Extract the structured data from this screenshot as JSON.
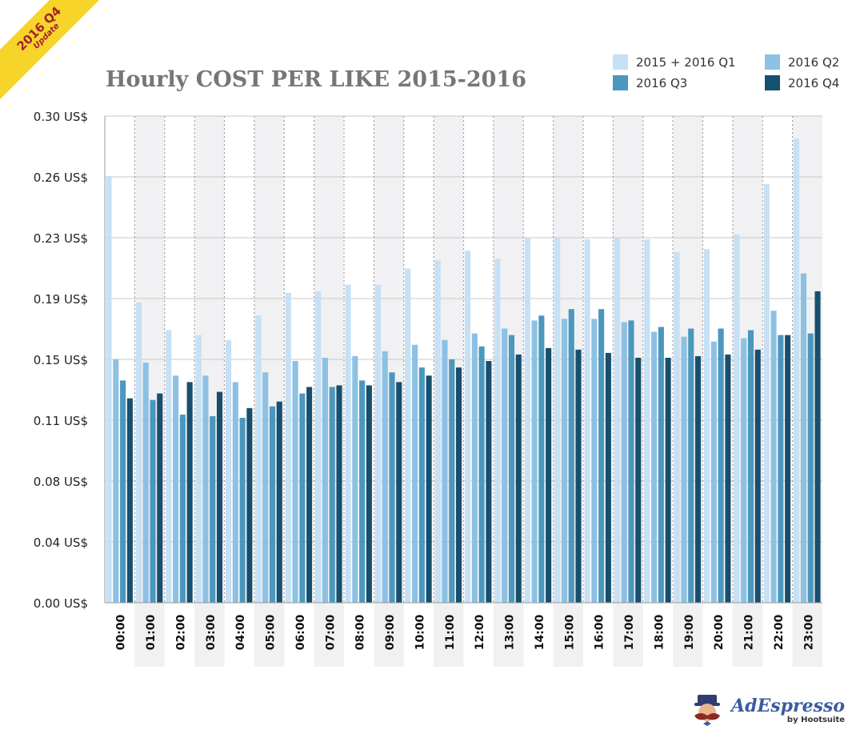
{
  "badge": {
    "line1": "2016 Q4",
    "line2": "Update"
  },
  "logo": {
    "name": "AdEspresso",
    "byline": "by Hootsuite"
  },
  "colors": {
    "series": [
      "#c6e0f5",
      "#8cc1e3",
      "#4b97bd",
      "#174f6e"
    ],
    "band": "#f1f0f2",
    "grid": "#c8c8c8",
    "badge_bg": "#f6d42a",
    "badge_text": "#a3212a",
    "title": "#767676"
  },
  "chart_data": {
    "type": "bar",
    "title": "Hourly COST PER LIKE 2015-2016",
    "xlabel": "",
    "ylabel": "",
    "ylim": [
      0,
      0.3
    ],
    "yticks": [
      0,
      0.0375,
      0.075,
      0.1125,
      0.15,
      0.1875,
      0.225,
      0.2625,
      0.3
    ],
    "ytick_labels": [
      "0.00 US$",
      "0.04 US$",
      "0.08 US$",
      "0.11 US$",
      "0.15 US$",
      "0.19 US$",
      "0.23 US$",
      "0.26 US$",
      "0.30 US$"
    ],
    "grid": true,
    "legend_position": "top-right",
    "categories": [
      "00:00",
      "01:00",
      "02:00",
      "03:00",
      "04:00",
      "05:00",
      "06:00",
      "07:00",
      "08:00",
      "09:00",
      "10:00",
      "11:00",
      "12:00",
      "13:00",
      "14:00",
      "15:00",
      "16:00",
      "17:00",
      "18:00",
      "19:00",
      "20:00",
      "21:00",
      "22:00",
      "23:00"
    ],
    "series": [
      {
        "name": "2015 + 2016 Q1",
        "values": [
          0.263,
          0.185,
          0.168,
          0.165,
          0.162,
          0.177,
          0.191,
          0.192,
          0.196,
          0.196,
          0.206,
          0.211,
          0.217,
          0.212,
          0.225,
          0.225,
          0.224,
          0.225,
          0.224,
          0.216,
          0.218,
          0.227,
          0.258,
          0.286
        ]
      },
      {
        "name": "2016 Q2",
        "values": [
          0.15,
          0.148,
          0.14,
          0.14,
          0.136,
          0.142,
          0.149,
          0.151,
          0.152,
          0.155,
          0.159,
          0.162,
          0.166,
          0.169,
          0.174,
          0.175,
          0.175,
          0.173,
          0.167,
          0.164,
          0.161,
          0.163,
          0.18,
          0.203
        ]
      },
      {
        "name": "2016 Q3",
        "values": [
          0.137,
          0.125,
          0.116,
          0.115,
          0.114,
          0.121,
          0.129,
          0.133,
          0.137,
          0.142,
          0.145,
          0.15,
          0.158,
          0.165,
          0.177,
          0.181,
          0.181,
          0.174,
          0.17,
          0.169,
          0.169,
          0.168,
          0.165,
          0.166
        ]
      },
      {
        "name": "2016 Q4",
        "values": [
          0.126,
          0.129,
          0.136,
          0.13,
          0.12,
          0.124,
          0.133,
          0.134,
          0.134,
          0.136,
          0.14,
          0.145,
          0.149,
          0.153,
          0.157,
          0.156,
          0.154,
          0.151,
          0.151,
          0.152,
          0.153,
          0.156,
          0.165,
          0.192
        ]
      }
    ]
  }
}
